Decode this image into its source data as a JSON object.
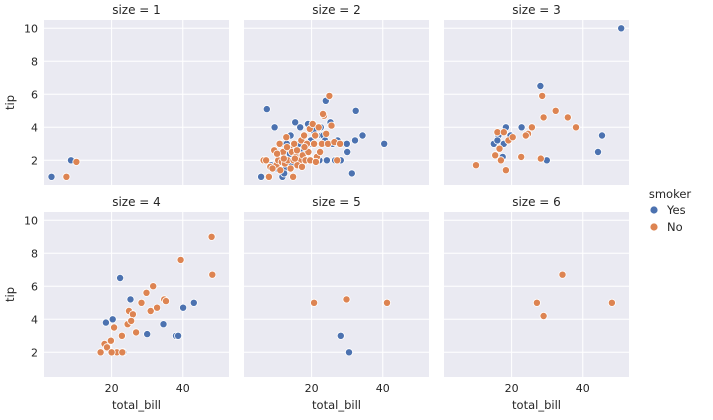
{
  "chart_data": {
    "type": "scatter",
    "xlabel": "total_bill",
    "ylabel": "tip",
    "xlim": [
      1,
      53
    ],
    "ylim": [
      0.5,
      10.5
    ],
    "xticks": [
      20,
      40
    ],
    "yticks": [
      2,
      4,
      6,
      8,
      10
    ],
    "grid": true,
    "legend": {
      "title": "smoker",
      "placement": "right",
      "entries": [
        {
          "label": "Yes",
          "color": "#4c72b0"
        },
        {
          "label": "No",
          "color": "#dd8452"
        }
      ]
    },
    "panels": [
      {
        "title": "size = 1",
        "series": [
          {
            "name": "Yes",
            "x": [
              3.1,
              8.6
            ],
            "y": [
              1.0,
              2.0
            ]
          },
          {
            "name": "No",
            "x": [
              7.3,
              10.1
            ],
            "y": [
              1.0,
              1.9
            ]
          }
        ]
      },
      {
        "title": "size = 2",
        "series": [
          {
            "name": "Yes",
            "x": [
              5.8,
              7.4,
              9.6,
              10.3,
              11.4,
              12.7,
              13.4,
              14.1,
              15.0,
              15.4,
              16.0,
              16.8,
              17.5,
              18.3,
              19.4,
              20.1,
              22.2,
              22.8,
              24.0,
              25.3,
              28.2,
              28.4,
              30.0,
              32.4,
              40.4,
              11.8,
              13.0,
              13.6,
              14.7,
              15.7,
              16.4,
              17.2,
              17.9,
              18.6,
              19.0,
              19.8,
              20.7,
              21.3,
              22.6,
              23.3,
              24.3,
              25.9,
              27.3,
              29.9,
              32.2,
              34.3,
              12.2,
              14.3,
              16.2,
              18.8,
              20.5,
              23.8,
              26.6,
              31.3,
              8.6,
              10.9,
              12.3,
              13.9,
              15.5
            ],
            "y": [
              1.0,
              5.1,
              4.0,
              1.5,
              3.0,
              1.5,
              2.0,
              3.5,
              2.0,
              4.3,
              2.0,
              4.0,
              3.0,
              2.0,
              4.0,
              3.0,
              2.0,
              3.5,
              5.6,
              4.3,
              2.0,
              3.0,
              2.5,
              5.0,
              3.0,
              1.0,
              3.0,
              2.0,
              2.5,
              2.0,
              3.0,
              2.5,
              3.5,
              2.0,
              4.2,
              3.2,
              3.0,
              2.0,
              4.0,
              3.5,
              2.0,
              3.0,
              3.2,
              3.0,
              3.2,
              3.5,
              2.2,
              1.8,
              2.3,
              2.5,
              3.8,
              3.2,
              2.0,
              1.2,
              1.7,
              2.0,
              1.2,
              2.4,
              2.6
            ]
          },
          {
            "name": "No",
            "x": [
              6.5,
              7.2,
              8.4,
              9.5,
              10.1,
              10.6,
              11.0,
              11.6,
              12.0,
              12.5,
              12.9,
              13.3,
              13.8,
              14.1,
              14.5,
              14.9,
              15.1,
              15.5,
              15.9,
              16.3,
              16.7,
              17.1,
              17.5,
              17.9,
              18.3,
              18.7,
              19.1,
              19.5,
              19.9,
              20.3,
              20.7,
              21.0,
              21.5,
              22.0,
              22.4,
              22.9,
              23.5,
              24.1,
              24.6,
              25.0,
              25.6,
              26.4,
              27.2,
              28.0,
              9.0,
              10.3,
              11.2,
              12.2,
              13.1,
              14.8,
              16.0,
              17.3,
              18.0,
              19.6,
              21.2,
              23.2,
              8.0,
              15.3
            ],
            "y": [
              2.0,
              2.0,
              1.6,
              2.6,
              1.7,
              2.0,
              3.0,
              1.9,
              2.5,
              1.8,
              3.4,
              2.0,
              2.7,
              1.5,
              2.5,
              2.0,
              3.0,
              2.2,
              2.6,
              1.7,
              2.0,
              3.2,
              2.3,
              3.5,
              2.0,
              3.0,
              2.5,
              3.9,
              2.0,
              4.2,
              3.0,
              3.5,
              2.2,
              4.0,
              2.5,
              3.0,
              4.7,
              3.6,
              3.0,
              5.9,
              4.1,
              3.1,
              2.0,
              3.0,
              1.5,
              2.4,
              1.4,
              2.1,
              2.8,
              1.0,
              1.7,
              1.6,
              2.8,
              2.0,
              1.9,
              4.8,
              1.0,
              2.1
            ]
          }
        ]
      },
      {
        "title": "size = 3",
        "series": [
          {
            "name": "Yes",
            "x": [
              15.0,
              16.3,
              17.5,
              18.4,
              19.7,
              22.8,
              24.1,
              28.1,
              29.9,
              44.3,
              45.4,
              50.8,
              16.0,
              17.8
            ],
            "y": [
              3.0,
              3.5,
              2.2,
              4.0,
              3.5,
              4.0,
              3.5,
              6.5,
              2.0,
              2.5,
              3.5,
              10.0,
              3.2,
              3.0
            ]
          },
          {
            "name": "No",
            "x": [
              10.0,
              15.4,
              16.0,
              16.6,
              17.0,
              17.8,
              18.4,
              19.1,
              20.3,
              22.7,
              24.6,
              25.7,
              28.2,
              28.6,
              29.0,
              32.4,
              35.8,
              38.1,
              24.0
            ],
            "y": [
              1.7,
              2.3,
              3.7,
              2.7,
              2.0,
              3.7,
              1.4,
              3.2,
              3.4,
              2.2,
              3.6,
              4.0,
              2.1,
              5.9,
              4.6,
              5.0,
              4.6,
              4.0,
              3.5
            ]
          }
        ]
      },
      {
        "title": "size = 4",
        "series": [
          {
            "name": "Yes",
            "x": [
              18.4,
              20.3,
              22.4,
              23.3,
              25.3,
              30.0,
              34.6,
              38.1,
              38.7,
              40.1,
              43.1
            ],
            "y": [
              3.8,
              4.0,
              6.5,
              2.0,
              5.2,
              3.1,
              3.7,
              3.0,
              3.0,
              4.7,
              5.0
            ]
          },
          {
            "name": "No",
            "x": [
              16.9,
              18.0,
              18.7,
              19.8,
              20.7,
              21.5,
              22.9,
              24.5,
              24.9,
              26.0,
              26.9,
              28.4,
              29.8,
              31.0,
              31.7,
              32.8,
              34.8,
              35.3,
              39.4,
              48.1,
              48.3,
              20.0,
              23.0,
              25.5
            ],
            "y": [
              2.0,
              2.5,
              2.3,
              2.7,
              3.5,
              2.0,
              3.0,
              3.7,
              4.5,
              4.3,
              3.2,
              5.0,
              5.6,
              4.5,
              6.0,
              4.7,
              5.2,
              5.1,
              7.6,
              9.0,
              6.7,
              2.0,
              2.0,
              3.9
            ]
          }
        ]
      },
      {
        "title": "size = 5",
        "series": [
          {
            "name": "Yes",
            "x": [
              28.2,
              30.5
            ],
            "y": [
              3.0,
              2.0
            ]
          },
          {
            "name": "No",
            "x": [
              20.7,
              29.8,
              41.2
            ],
            "y": [
              5.0,
              5.2,
              5.0
            ]
          }
        ]
      },
      {
        "title": "size = 6",
        "series": [
          {
            "name": "Yes",
            "x": [],
            "y": []
          },
          {
            "name": "No",
            "x": [
              27.1,
              29.0,
              34.3,
              48.2
            ],
            "y": [
              5.0,
              4.2,
              6.7,
              5.0
            ]
          }
        ]
      }
    ]
  }
}
